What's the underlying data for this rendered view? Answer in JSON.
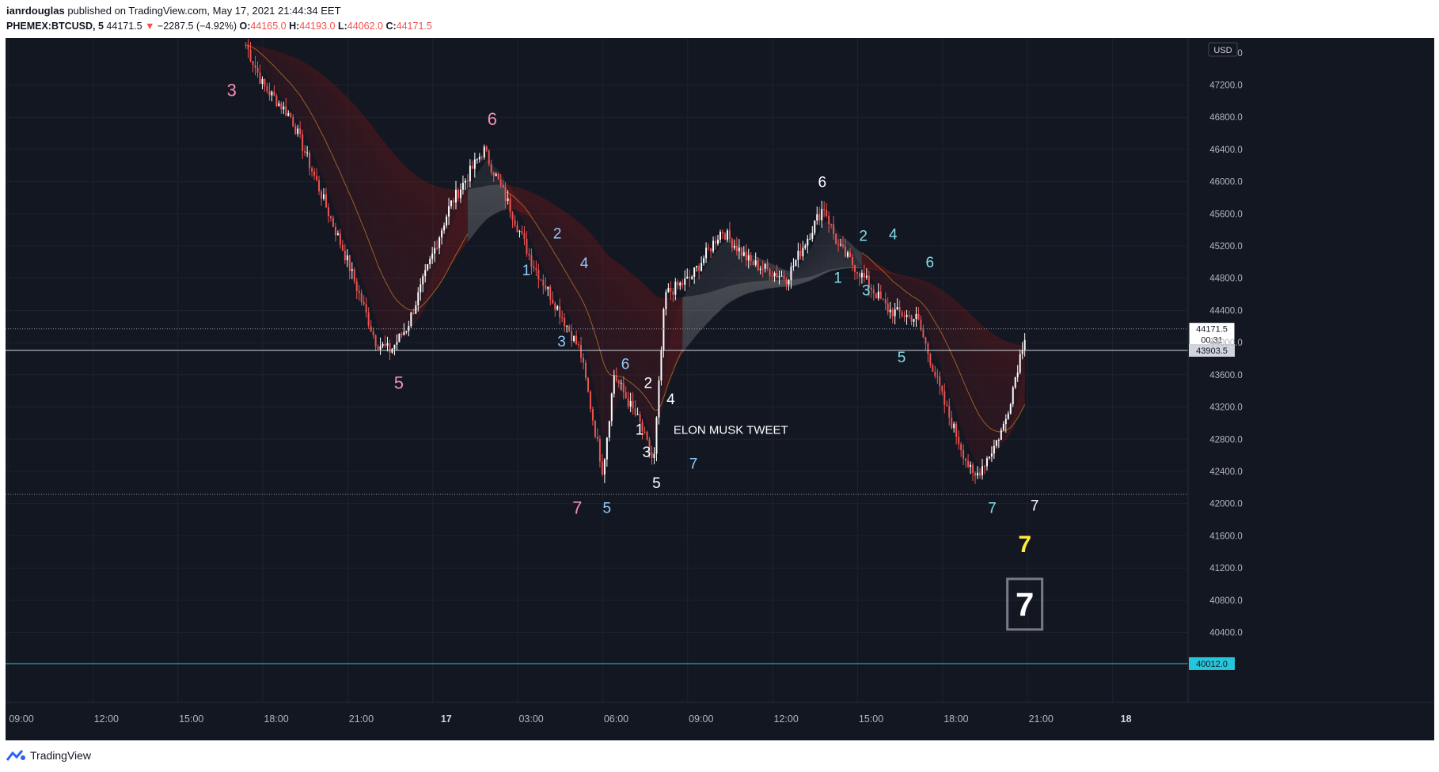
{
  "header": {
    "author": "ianrdouglas",
    "published_text": "published on TradingView.com, May 17, 2021 21:44:34 EET",
    "symbol": "PHEMEX:BTCUSD, 5",
    "last": "44171.5",
    "change": "−2287.5 (−4.92%)",
    "o_label": "O:",
    "o_value": "44165.0",
    "h_label": "H:",
    "h_value": "44193.0",
    "l_label": "L:",
    "l_value": "44062.0",
    "c_label": "C:",
    "c_value": "44171.5"
  },
  "footer": {
    "brand": "TradingView"
  },
  "colors": {
    "background": "#131722",
    "up": "#ffffff",
    "down": "#ef5350",
    "ribbon_bear": "#8b1a1a",
    "ribbon_bull": "#9e9e9e",
    "hline_cyan": "#26c6da",
    "pink": "#f48fb1",
    "blue": "#90caf9",
    "teal": "#80deea",
    "yellow": "#ffeb3b"
  },
  "chart_data": {
    "type": "candlestick",
    "currency": "USD",
    "y_ticks": [
      40400,
      40800,
      41200,
      41600,
      42000,
      42400,
      42800,
      43200,
      43600,
      44000,
      44400,
      44800,
      45200,
      45600,
      46000,
      46400,
      46800,
      47200
    ],
    "y_tick_labels": [
      "40400.0",
      "40800.0",
      "41200.0",
      "41600.0",
      "42000.0",
      "42400.0",
      "42800.0",
      "43200.0",
      "43600.0",
      "44000.0",
      "44400.0",
      "44800.0",
      "45200.0",
      "45600.0",
      "46000.0",
      "46400.0",
      "46800.0",
      "47200.0"
    ],
    "partial_top_tick": "47600.0",
    "x_ticks": [
      9,
      12,
      15,
      18,
      21,
      24,
      27,
      30,
      33,
      36,
      39,
      42,
      45,
      48
    ],
    "x_tick_labels": [
      "09:00",
      "12:00",
      "15:00",
      "18:00",
      "21:00",
      "17",
      "03:00",
      "06:00",
      "09:00",
      "12:00",
      "15:00",
      "18:00",
      "21:00",
      "18"
    ],
    "price_path": [
      [
        17.4,
        47700
      ],
      [
        18.0,
        47200
      ],
      [
        19.0,
        46800
      ],
      [
        20.0,
        45900
      ],
      [
        21.0,
        45000
      ],
      [
        22.0,
        44000
      ],
      [
        22.5,
        43900
      ],
      [
        23.1,
        44200
      ],
      [
        23.6,
        44700
      ],
      [
        24.6,
        45700
      ],
      [
        25.8,
        46400
      ],
      [
        26.7,
        45700
      ],
      [
        27.5,
        45000
      ],
      [
        28.3,
        44500
      ],
      [
        29.2,
        43900
      ],
      [
        30.0,
        42400
      ],
      [
        30.4,
        43600
      ],
      [
        31.3,
        43000
      ],
      [
        31.8,
        42500
      ],
      [
        32.2,
        44600
      ],
      [
        33.1,
        44800
      ],
      [
        34.2,
        45400
      ],
      [
        35.2,
        45000
      ],
      [
        36.5,
        44800
      ],
      [
        37.8,
        45700
      ],
      [
        38.3,
        45200
      ],
      [
        39.0,
        44900
      ],
      [
        40.1,
        44400
      ],
      [
        41.1,
        44300
      ],
      [
        42.1,
        43200
      ],
      [
        43.1,
        42300
      ],
      [
        43.8,
        42700
      ],
      [
        44.2,
        43000
      ],
      [
        44.9,
        44100
      ]
    ],
    "horizontal_lines": [
      {
        "price": 44171.5,
        "style": "dotted",
        "label": "44171.5",
        "sublabel": "00:31"
      },
      {
        "price": 43903.5,
        "style": "solid",
        "label": "43903.5"
      },
      {
        "price": 42115,
        "style": "dotted"
      },
      {
        "price": 40012.0,
        "style": "solid",
        "label": "40012.0",
        "color": "cyan"
      }
    ],
    "annotations": [
      {
        "text": "3",
        "x": 16.9,
        "y": 47140,
        "color": "pink"
      },
      {
        "text": "6",
        "x": 26.1,
        "y": 46780,
        "color": "pink"
      },
      {
        "text": "5",
        "x": 22.8,
        "y": 43500,
        "color": "pink"
      },
      {
        "text": "7",
        "x": 29.1,
        "y": 41950,
        "color": "pink"
      },
      {
        "text": "1",
        "x": 27.3,
        "y": 44900,
        "color": "blue"
      },
      {
        "text": "2",
        "x": 28.4,
        "y": 45360,
        "color": "blue"
      },
      {
        "text": "3",
        "x": 28.55,
        "y": 44020,
        "color": "blue"
      },
      {
        "text": "4",
        "x": 29.35,
        "y": 44990,
        "color": "blue"
      },
      {
        "text": "5",
        "x": 30.15,
        "y": 41950,
        "color": "blue"
      },
      {
        "text": "6",
        "x": 30.8,
        "y": 43740,
        "color": "blue"
      },
      {
        "text": "7",
        "x": 33.2,
        "y": 42500,
        "color": "blue"
      },
      {
        "text": "2",
        "x": 31.6,
        "y": 43500,
        "color": "white"
      },
      {
        "text": "4",
        "x": 32.4,
        "y": 43300,
        "color": "white"
      },
      {
        "text": "1",
        "x": 31.3,
        "y": 42920,
        "color": "white"
      },
      {
        "text": "3",
        "x": 31.55,
        "y": 42640,
        "color": "white"
      },
      {
        "text": "5",
        "x": 31.9,
        "y": 42260,
        "color": "white"
      },
      {
        "text": "ELON MUSK TWEET",
        "x": 32.5,
        "y": 42920,
        "color": "white"
      },
      {
        "text": "6",
        "x": 37.75,
        "y": 46000,
        "color": "white"
      },
      {
        "text": "1",
        "x": 38.3,
        "y": 44810,
        "color": "teal"
      },
      {
        "text": "2",
        "x": 39.2,
        "y": 45330,
        "color": "teal"
      },
      {
        "text": "3",
        "x": 39.3,
        "y": 44650,
        "color": "teal"
      },
      {
        "text": "4",
        "x": 40.25,
        "y": 45350,
        "color": "teal"
      },
      {
        "text": "5",
        "x": 40.55,
        "y": 43820,
        "color": "teal"
      },
      {
        "text": "6",
        "x": 41.55,
        "y": 45000,
        "color": "teal"
      },
      {
        "text": "7",
        "x": 43.75,
        "y": 41950,
        "color": "teal"
      },
      {
        "text": "7",
        "x": 45.25,
        "y": 41980,
        "color": "white"
      },
      {
        "text": "7",
        "x": 44.9,
        "y": 41500,
        "color": "yellow"
      },
      {
        "text": "7",
        "x": 44.9,
        "y": 40750,
        "color": "white",
        "boxed": true
      }
    ]
  }
}
